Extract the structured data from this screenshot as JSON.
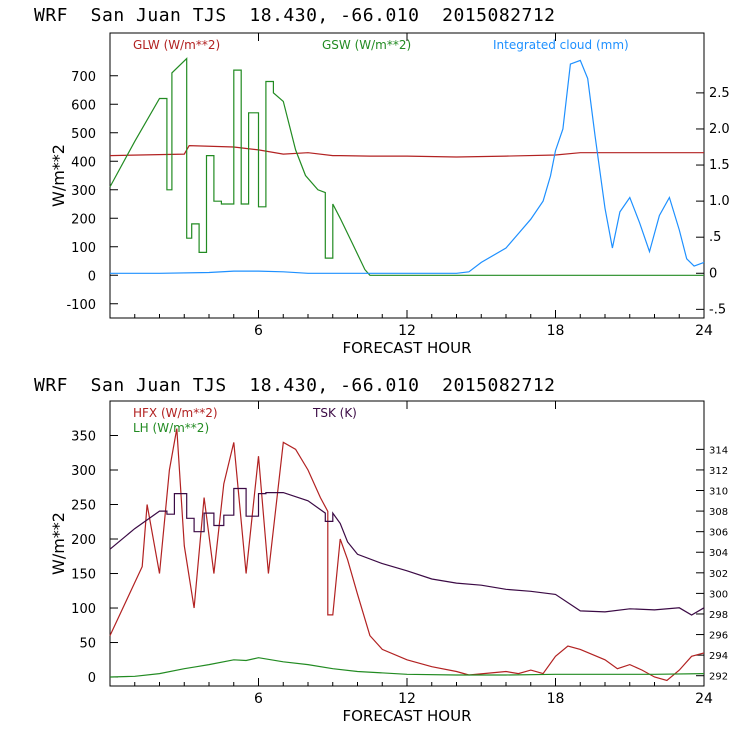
{
  "charts": [
    {
      "title": "WRF  San Juan TJS  18.430, -66.010  2015082712",
      "xlabel": "FORECAST HOUR",
      "ylabel": "W/m**2",
      "xlim": [
        0,
        24
      ],
      "xticks": [
        6,
        12,
        18,
        24
      ],
      "ylim": [
        -150,
        850
      ],
      "yticks": [
        -100,
        0,
        100,
        200,
        300,
        400,
        500,
        600,
        700
      ],
      "right_ylim": [
        -0.62,
        3.33
      ],
      "right_yticks": [
        -0.5,
        0,
        0.5,
        1.0,
        1.5,
        2.0,
        2.5
      ],
      "right_ytick_labels": [
        "-.5",
        "0",
        ".5",
        "1.0",
        "1.5",
        "2.0",
        "2.5"
      ],
      "legend": [
        "GLW (W/m**2)",
        "GSW (W/m**2)",
        "Integrated cloud (mm)"
      ],
      "series": [
        {
          "name": "GLW (W/m**2)",
          "color": "#b22222",
          "axis": "left",
          "x": [
            0,
            3,
            3.2,
            5,
            6,
            7,
            8,
            9,
            9.3,
            10.5,
            12,
            14,
            16,
            18,
            19,
            20,
            22,
            24
          ],
          "y": [
            420,
            425,
            455,
            450,
            440,
            425,
            430,
            420,
            420,
            418,
            418,
            415,
            418,
            422,
            430,
            430,
            430,
            430
          ]
        },
        {
          "name": "GSW (W/m**2)",
          "color": "#228b22",
          "axis": "left",
          "step": true,
          "x": [
            0,
            1,
            2,
            2.3,
            2.3,
            2.5,
            2.5,
            3.1,
            3.1,
            3.3,
            3.3,
            3.6,
            3.6,
            3.9,
            3.9,
            4.2,
            4.2,
            4.5,
            4.5,
            5.0,
            5.0,
            5.3,
            5.3,
            5.6,
            5.6,
            6.0,
            6.0,
            6.3,
            6.3,
            6.6,
            6.6,
            7.0,
            7.5,
            7.9,
            8.4,
            8.7,
            8.7,
            9.0,
            9.0,
            9.3,
            9.8,
            10.3,
            10.5,
            12,
            24
          ],
          "y": [
            310,
            470,
            620,
            620,
            300,
            300,
            710,
            760,
            130,
            130,
            180,
            180,
            80,
            80,
            420,
            420,
            260,
            260,
            250,
            250,
            720,
            720,
            250,
            250,
            570,
            570,
            240,
            240,
            680,
            680,
            640,
            610,
            440,
            350,
            300,
            290,
            60,
            60,
            250,
            200,
            110,
            20,
            0,
            0,
            0
          ]
        },
        {
          "name": "Integrated cloud (mm)",
          "color": "#1e90ff",
          "axis": "right",
          "x": [
            0,
            2,
            4,
            5,
            6,
            7,
            8,
            9,
            10,
            12,
            14,
            14.5,
            15,
            16,
            16.5,
            17,
            17.5,
            17.8,
            18,
            18.3,
            18.6,
            19,
            19.3,
            19.6,
            20,
            20.3,
            20.6,
            21,
            21.4,
            21.8,
            22.2,
            22.6,
            23,
            23.3,
            23.6,
            24
          ],
          "y": [
            0,
            0,
            0.01,
            0.03,
            0.03,
            0.02,
            0,
            0,
            0,
            0,
            0,
            0.02,
            0.15,
            0.35,
            0.55,
            0.75,
            1.0,
            1.35,
            1.7,
            2.0,
            2.9,
            2.95,
            2.7,
            1.9,
            0.9,
            0.35,
            0.85,
            1.05,
            0.7,
            0.3,
            0.8,
            1.05,
            0.6,
            0.2,
            0.1,
            0.15
          ]
        }
      ]
    },
    {
      "title": "WRF  San Juan TJS  18.430, -66.010  2015082712",
      "xlabel": "FORECAST HOUR",
      "ylabel": "W/m**2",
      "xlim": [
        0,
        24
      ],
      "xticks": [
        6,
        12,
        18,
        24
      ],
      "ylim": [
        -13,
        400
      ],
      "yticks": [
        0,
        50,
        100,
        150,
        200,
        250,
        300,
        350
      ],
      "right_ylim": [
        291.0,
        318.7
      ],
      "right_yticks": [
        292,
        294,
        296,
        298,
        300,
        302,
        304,
        306,
        308,
        310,
        312,
        314
      ],
      "right_ytick_labels": [
        "292",
        "294",
        "296",
        "298",
        "300",
        "302",
        "304",
        "306",
        "308",
        "310",
        "312",
        "314"
      ],
      "legend": [
        "HFX (W/m**2)",
        "LH (W/m**2)",
        "TSK (K)"
      ],
      "series": [
        {
          "name": "HFX (W/m**2)",
          "color": "#b22222",
          "axis": "left",
          "step": true,
          "x": [
            0,
            1.3,
            1.3,
            1.5,
            1.5,
            2.0,
            2.0,
            2.4,
            2.4,
            2.7,
            2.7,
            3.0,
            3.0,
            3.4,
            3.4,
            3.8,
            3.8,
            4.2,
            4.2,
            4.6,
            4.6,
            5.0,
            5.0,
            5.5,
            5.5,
            6.0,
            6.0,
            6.4,
            6.4,
            7.0,
            7.5,
            8.0,
            8.5,
            8.8,
            8.8,
            9.0,
            9.3,
            9.6,
            10.0,
            10.5,
            11,
            12,
            13,
            14,
            14.5,
            16,
            16.5,
            17,
            17.5,
            18,
            18.5,
            19,
            20,
            20.5,
            21,
            21.5,
            22,
            22.5,
            23,
            23.5,
            24
          ],
          "y": [
            60,
            160,
            160,
            250,
            250,
            150,
            150,
            300,
            300,
            360,
            360,
            190,
            190,
            100,
            100,
            260,
            260,
            150,
            150,
            280,
            280,
            340,
            340,
            150,
            150,
            320,
            320,
            150,
            150,
            340,
            330,
            300,
            260,
            240,
            90,
            90,
            200,
            170,
            120,
            60,
            40,
            25,
            15,
            8,
            3,
            8,
            5,
            10,
            5,
            30,
            45,
            40,
            25,
            12,
            18,
            10,
            0,
            -5,
            10,
            30,
            35
          ]
        },
        {
          "name": "LH (W/m**2)",
          "color": "#228b22",
          "axis": "left",
          "x": [
            0,
            1,
            2,
            3,
            3.5,
            4,
            5,
            5.5,
            6,
            7,
            8,
            9,
            10,
            12,
            14,
            16,
            18,
            20,
            22,
            24
          ],
          "y": [
            0,
            1,
            5,
            12,
            15,
            18,
            25,
            24,
            28,
            22,
            18,
            12,
            8,
            4,
            3,
            3,
            4,
            4,
            4,
            5
          ]
        },
        {
          "name": "TSK (K)",
          "color": "#3b0a45",
          "axis": "right",
          "step": true,
          "x": [
            0,
            1,
            2,
            2.3,
            2.3,
            2.6,
            2.6,
            3.1,
            3.1,
            3.4,
            3.4,
            3.8,
            3.8,
            4.2,
            4.2,
            4.6,
            4.6,
            5.0,
            5.0,
            5.5,
            5.5,
            6.0,
            6.0,
            6.3,
            6.3,
            7,
            8,
            8.7,
            8.7,
            9.0,
            9.0,
            9.3,
            9.6,
            10,
            11,
            12,
            13,
            14,
            15,
            16,
            17,
            18,
            19,
            20,
            21,
            22,
            23,
            23.5,
            24
          ],
          "y": [
            304.3,
            306.3,
            308.0,
            308.0,
            307.7,
            307.7,
            309.7,
            309.7,
            307.3,
            307.3,
            306.0,
            306.0,
            307.8,
            307.8,
            306.6,
            306.6,
            307.6,
            307.6,
            310.2,
            310.2,
            307.5,
            307.5,
            309.7,
            309.7,
            309.8,
            309.8,
            309.0,
            307.8,
            307.0,
            307.0,
            307.8,
            306.8,
            305.0,
            303.8,
            302.9,
            302.2,
            301.4,
            301.0,
            300.8,
            300.4,
            300.2,
            299.9,
            298.3,
            298.2,
            298.5,
            298.4,
            298.6,
            297.9,
            298.6
          ]
        }
      ]
    }
  ]
}
